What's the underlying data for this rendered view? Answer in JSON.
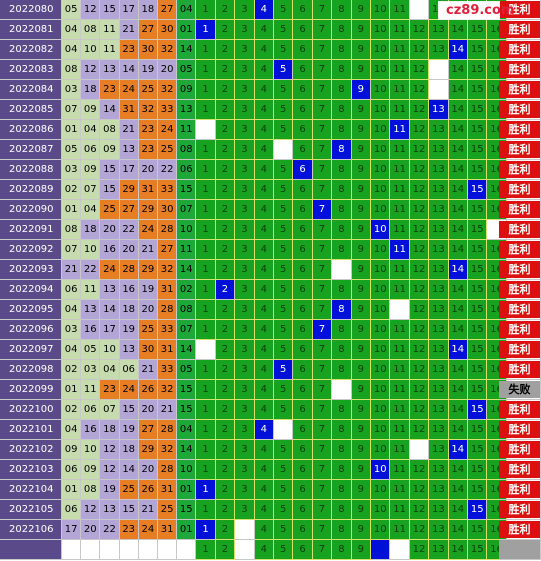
{
  "logo": {
    "text": "cz89.com"
  },
  "result_labels": {
    "win": "胜利",
    "lose": "失败"
  },
  "rows": [
    {
      "issue": "2022080",
      "nums": [
        "05",
        "12",
        "15",
        "17",
        "18",
        "27",
        "04"
      ],
      "hit": 4,
      "miss": [
        12
      ],
      "result": "win"
    },
    {
      "issue": "2022081",
      "nums": [
        "04",
        "08",
        "11",
        "21",
        "27",
        "30",
        "01"
      ],
      "hit": 1,
      "miss": [],
      "result": "win"
    },
    {
      "issue": "2022082",
      "nums": [
        "04",
        "10",
        "11",
        "23",
        "30",
        "32",
        "14"
      ],
      "hit": 14,
      "miss": [],
      "result": "win"
    },
    {
      "issue": "2022083",
      "nums": [
        "08",
        "12",
        "13",
        "14",
        "19",
        "20",
        "05"
      ],
      "hit": 5,
      "miss": [
        13
      ],
      "result": "win"
    },
    {
      "issue": "2022084",
      "nums": [
        "03",
        "18",
        "23",
        "24",
        "25",
        "32",
        "09"
      ],
      "hit": 9,
      "miss": [
        13
      ],
      "result": "win"
    },
    {
      "issue": "2022085",
      "nums": [
        "07",
        "09",
        "14",
        "31",
        "32",
        "33",
        "13"
      ],
      "hit": 13,
      "miss": [],
      "result": "win"
    },
    {
      "issue": "2022086",
      "nums": [
        "01",
        "04",
        "08",
        "21",
        "23",
        "24",
        "11"
      ],
      "hit": 11,
      "miss": [
        1
      ],
      "result": "win"
    },
    {
      "issue": "2022087",
      "nums": [
        "05",
        "06",
        "09",
        "13",
        "23",
        "25",
        "08"
      ],
      "hit": 8,
      "miss": [
        5
      ],
      "result": "win"
    },
    {
      "issue": "2022088",
      "nums": [
        "03",
        "09",
        "15",
        "17",
        "20",
        "22",
        "06"
      ],
      "hit": 6,
      "miss": [],
      "result": "win"
    },
    {
      "issue": "2022089",
      "nums": [
        "02",
        "07",
        "15",
        "29",
        "31",
        "33",
        "15"
      ],
      "hit": 15,
      "miss": [],
      "result": "win"
    },
    {
      "issue": "2022090",
      "nums": [
        "01",
        "04",
        "25",
        "27",
        "29",
        "30",
        "07"
      ],
      "hit": 7,
      "miss": [],
      "result": "win"
    },
    {
      "issue": "2022091",
      "nums": [
        "08",
        "18",
        "20",
        "22",
        "24",
        "28",
        "10"
      ],
      "hit": 10,
      "miss": [
        16
      ],
      "result": "win"
    },
    {
      "issue": "2022092",
      "nums": [
        "07",
        "10",
        "16",
        "20",
        "21",
        "27",
        "11"
      ],
      "hit": 11,
      "miss": [],
      "result": "win"
    },
    {
      "issue": "2022093",
      "nums": [
        "21",
        "22",
        "24",
        "28",
        "29",
        "32",
        "14"
      ],
      "hit": 14,
      "miss": [
        8
      ],
      "result": "win"
    },
    {
      "issue": "2022094",
      "nums": [
        "06",
        "11",
        "13",
        "16",
        "19",
        "31",
        "02"
      ],
      "hit": 2,
      "miss": [],
      "result": "win"
    },
    {
      "issue": "2022095",
      "nums": [
        "04",
        "13",
        "14",
        "18",
        "20",
        "28",
        "08"
      ],
      "hit": 8,
      "miss": [
        11
      ],
      "result": "win"
    },
    {
      "issue": "2022096",
      "nums": [
        "03",
        "16",
        "17",
        "19",
        "25",
        "33",
        "07"
      ],
      "hit": 7,
      "miss": [],
      "result": "win"
    },
    {
      "issue": "2022097",
      "nums": [
        "04",
        "05",
        "10",
        "13",
        "30",
        "31",
        "14"
      ],
      "hit": 14,
      "miss": [
        1
      ],
      "result": "win"
    },
    {
      "issue": "2022098",
      "nums": [
        "02",
        "03",
        "04",
        "06",
        "21",
        "33",
        "05"
      ],
      "hit": 5,
      "miss": [],
      "result": "win"
    },
    {
      "issue": "2022099",
      "nums": [
        "01",
        "11",
        "23",
        "24",
        "26",
        "32",
        "15"
      ],
      "hit": null,
      "miss": [
        8
      ],
      "result": "lose"
    },
    {
      "issue": "2022100",
      "nums": [
        "02",
        "06",
        "07",
        "15",
        "20",
        "21",
        "15"
      ],
      "hit": 15,
      "miss": [],
      "result": "win"
    },
    {
      "issue": "2022101",
      "nums": [
        "04",
        "16",
        "18",
        "19",
        "27",
        "28",
        "04"
      ],
      "hit": 4,
      "miss": [
        5
      ],
      "result": "win"
    },
    {
      "issue": "2022102",
      "nums": [
        "09",
        "10",
        "12",
        "18",
        "29",
        "32",
        "14"
      ],
      "hit": 14,
      "miss": [
        12
      ],
      "result": "win"
    },
    {
      "issue": "2022103",
      "nums": [
        "06",
        "09",
        "12",
        "14",
        "20",
        "28",
        "10"
      ],
      "hit": 10,
      "miss": [],
      "result": "win"
    },
    {
      "issue": "2022104",
      "nums": [
        "01",
        "08",
        "19",
        "25",
        "26",
        "31",
        "01"
      ],
      "hit": 1,
      "miss": [],
      "result": "win"
    },
    {
      "issue": "2022105",
      "nums": [
        "06",
        "12",
        "13",
        "15",
        "21",
        "25",
        "15"
      ],
      "hit": 15,
      "miss": [],
      "result": "win"
    },
    {
      "issue": "2022106",
      "nums": [
        "17",
        "20",
        "22",
        "23",
        "24",
        "31",
        "01"
      ],
      "hit": 1,
      "miss": [
        3
      ],
      "result": "win"
    }
  ],
  "footer": {
    "hit": 10,
    "miss": [
      3,
      11
    ]
  }
}
